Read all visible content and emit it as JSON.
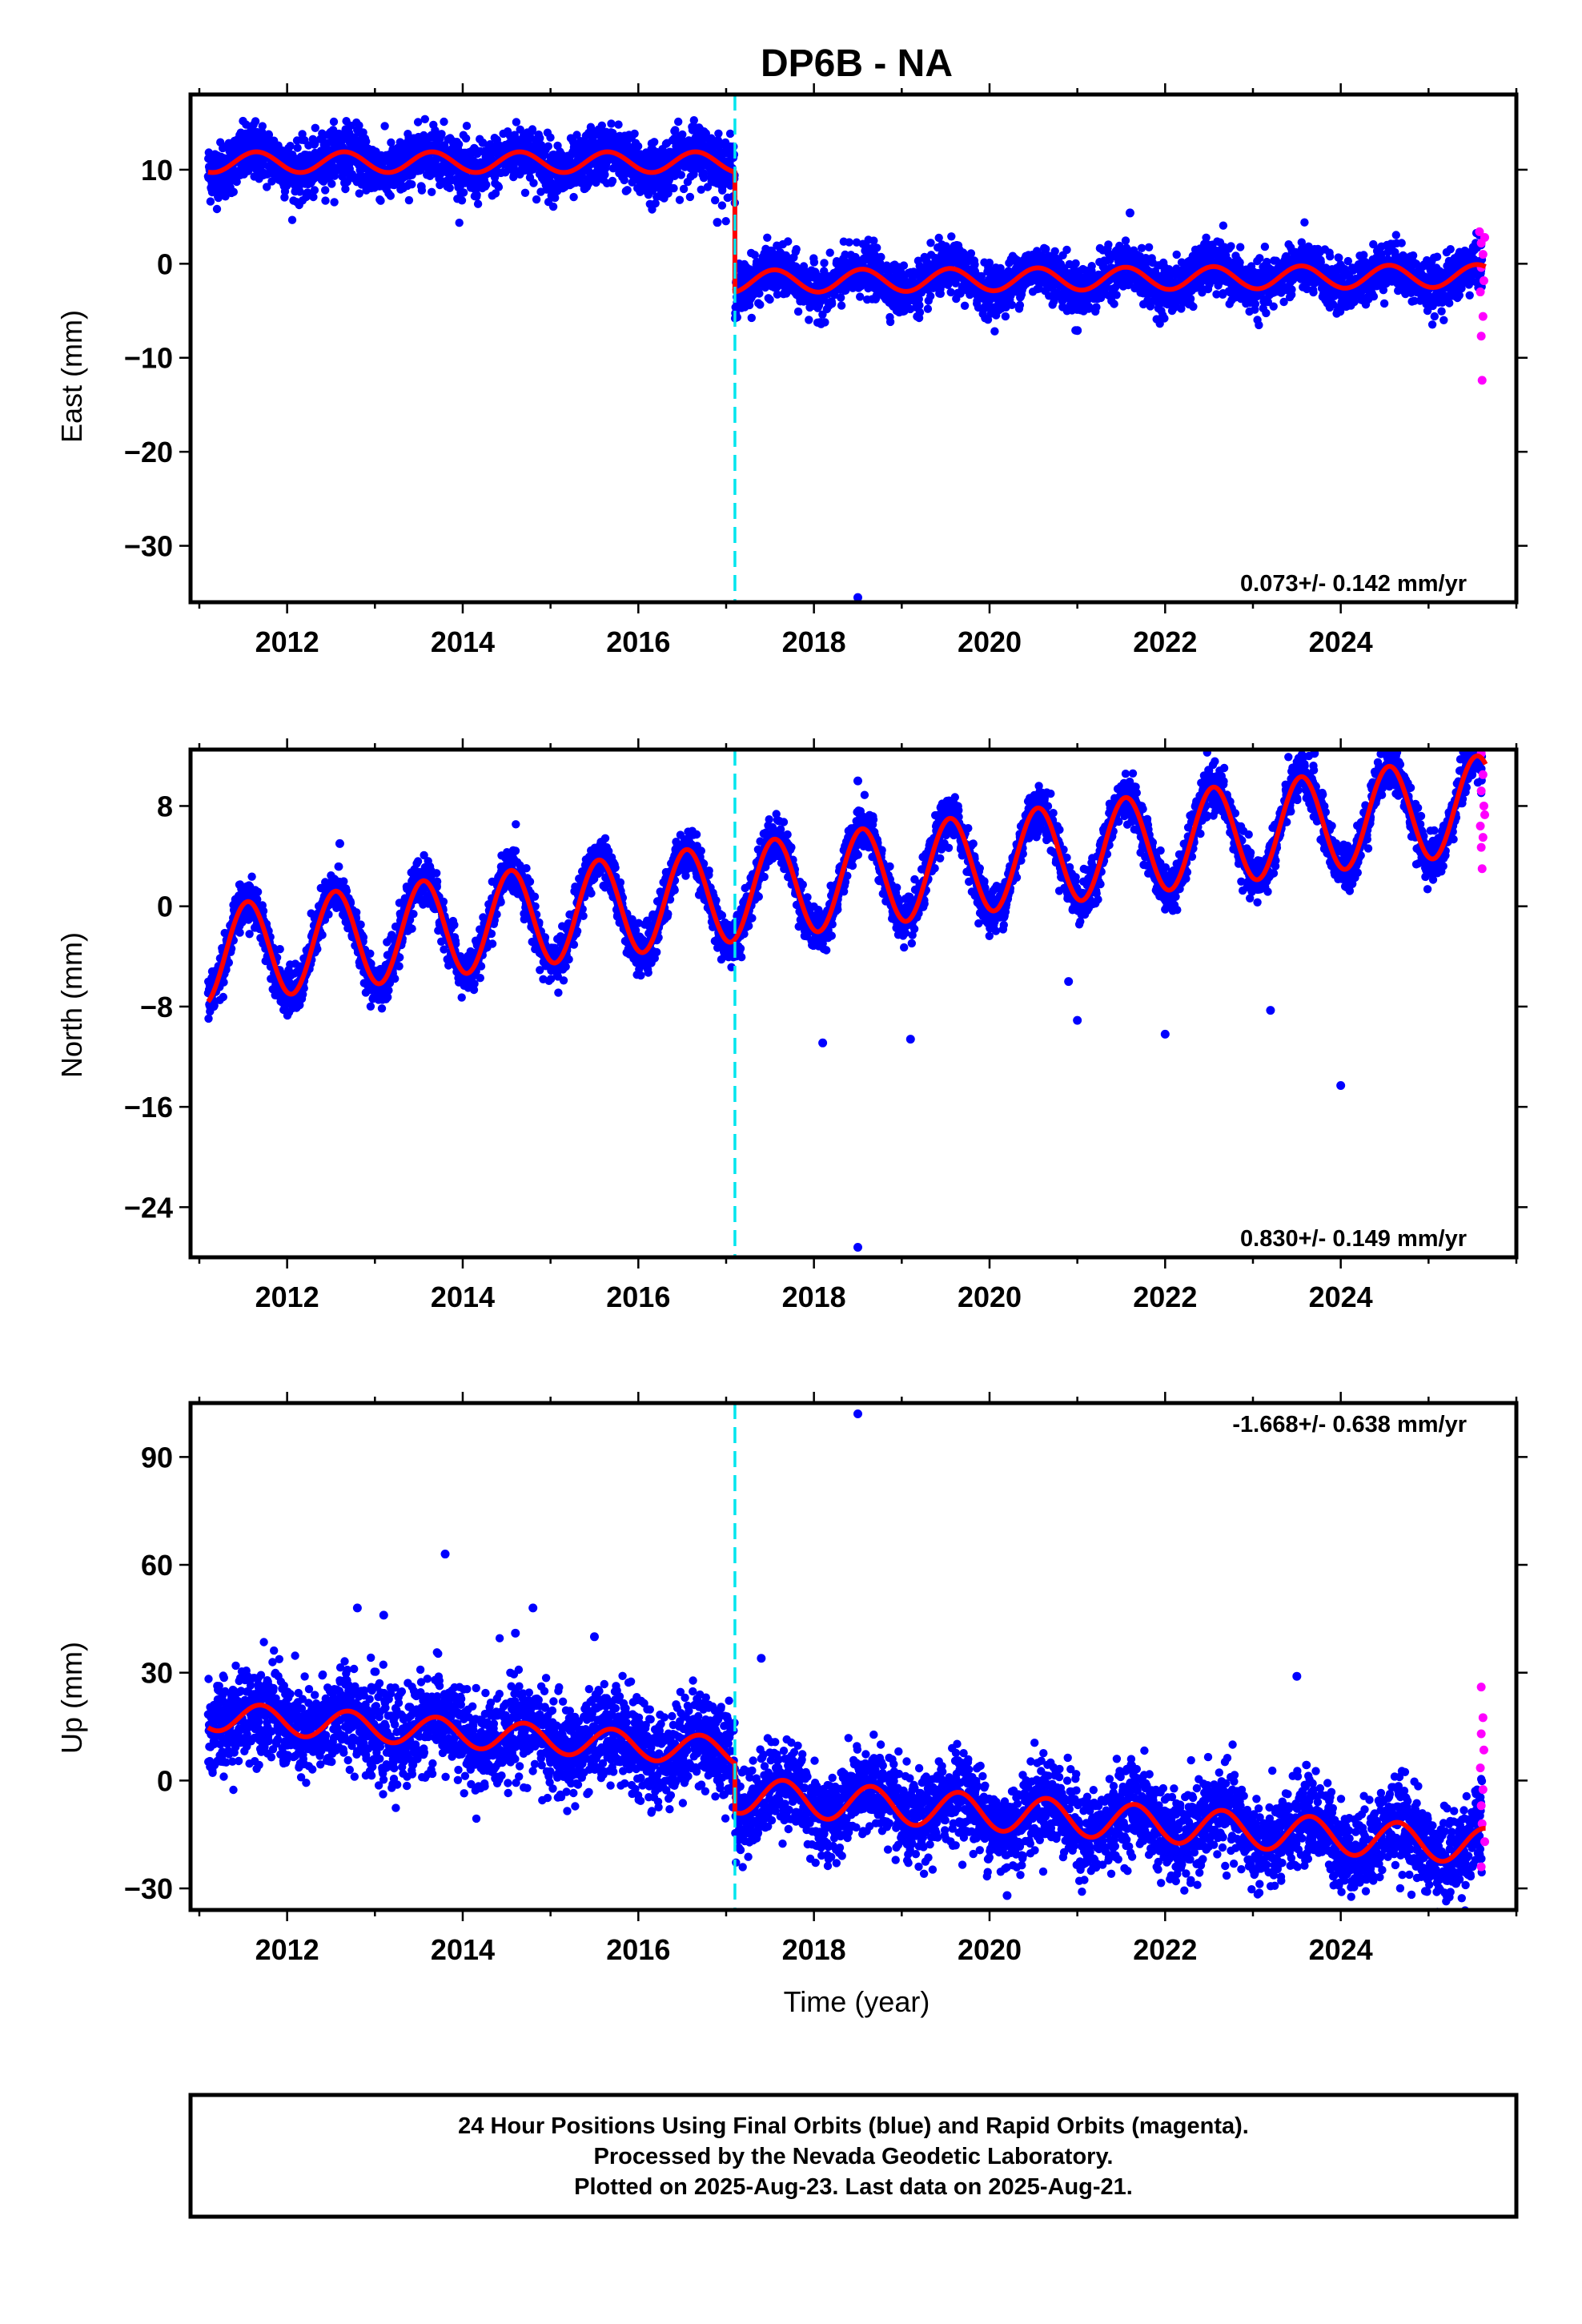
{
  "title": "DP6B - NA",
  "colors": {
    "final_points": "#0000ff",
    "rapid_points": "#ff00ff",
    "model": "#ff0000",
    "offset_line": "#00e5ee",
    "frame": "#000000"
  },
  "chart_data": [
    {
      "type": "scatter",
      "name": "east",
      "ylabel": "East (mm)",
      "xlabel": "",
      "xlim": [
        2010.9,
        2026.0
      ],
      "ylim": [
        -36,
        18
      ],
      "xticks": [
        2012,
        2014,
        2016,
        2018,
        2020,
        2022,
        2024
      ],
      "yticks": [
        10,
        0,
        -10,
        -20,
        -30
      ],
      "rate_label": "0.073+/- 0.142 mm/yr",
      "rate_position": "bottom-right",
      "offset_epoch": 2017.1,
      "model": {
        "start": 2011.1,
        "end": 2025.65,
        "before": {
          "base": 10.8,
          "trend": 0.0,
          "amplitude": 1.1,
          "phase_year": 2011.65,
          "noise": 1.5
        },
        "after": {
          "base": -2.3,
          "trend": 0.07,
          "amplitude": 1.2,
          "phase_year": 2017.55,
          "noise": 1.3
        }
      },
      "outliers": [
        {
          "x": 2018.5,
          "y": -35.5
        },
        {
          "x": 2016.9,
          "y": 4.4
        },
        {
          "x": 2021.0,
          "y": -7.1
        },
        {
          "x": 2021.6,
          "y": 5.4
        }
      ],
      "rapid_points": [
        {
          "x": 2025.58,
          "y": 3.4
        },
        {
          "x": 2025.6,
          "y": 2.2
        },
        {
          "x": 2025.62,
          "y": 1.0
        },
        {
          "x": 2025.6,
          "y": -0.4
        },
        {
          "x": 2025.63,
          "y": -1.8
        },
        {
          "x": 2025.59,
          "y": -3.0
        },
        {
          "x": 2025.62,
          "y": -5.6
        },
        {
          "x": 2025.6,
          "y": -7.7
        },
        {
          "x": 2025.61,
          "y": -12.4
        },
        {
          "x": 2025.64,
          "y": 2.8
        }
      ]
    },
    {
      "type": "scatter",
      "name": "north",
      "ylabel": "North (mm)",
      "xlabel": "",
      "xlim": [
        2010.9,
        2026.0
      ],
      "ylim": [
        -28,
        12.5
      ],
      "xticks": [
        2012,
        2014,
        2016,
        2018,
        2020,
        2022,
        2024
      ],
      "yticks": [
        8,
        0,
        -8,
        -16,
        -24
      ],
      "rate_label": "0.830+/- 0.149 mm/yr",
      "rate_position": "bottom-right",
      "offset_epoch": 2017.1,
      "model": {
        "start": 2011.1,
        "end": 2025.65,
        "before": {
          "base": -3.9,
          "trend": 0.83,
          "amplitude": 3.9,
          "phase_year": 2011.55,
          "noise": 0.9
        },
        "after": {
          "base": -3.9,
          "trend": 0.83,
          "amplitude": 3.9,
          "phase_year": 2011.55,
          "noise": 0.9
        }
      },
      "outliers": [
        {
          "x": 2018.5,
          "y": -27.2
        },
        {
          "x": 2024.0,
          "y": -14.3
        },
        {
          "x": 2019.1,
          "y": -10.6
        },
        {
          "x": 2018.1,
          "y": -10.9
        },
        {
          "x": 2021.0,
          "y": -9.1
        },
        {
          "x": 2022.0,
          "y": -10.2
        },
        {
          "x": 2023.2,
          "y": -8.3
        },
        {
          "x": 2020.9,
          "y": -6.0
        },
        {
          "x": 2023.7,
          "y": 12.2
        },
        {
          "x": 2012.6,
          "y": 5.0
        },
        {
          "x": 2018.5,
          "y": 10.0
        }
      ],
      "rapid_points": [
        {
          "x": 2025.6,
          "y": 12.2
        },
        {
          "x": 2025.62,
          "y": 10.5
        },
        {
          "x": 2025.6,
          "y": 9.2
        },
        {
          "x": 2025.63,
          "y": 8.0
        },
        {
          "x": 2025.59,
          "y": 6.4
        },
        {
          "x": 2025.62,
          "y": 5.5
        },
        {
          "x": 2025.6,
          "y": 4.7
        },
        {
          "x": 2025.61,
          "y": 3.0
        },
        {
          "x": 2025.64,
          "y": 7.3
        }
      ]
    },
    {
      "type": "scatter",
      "name": "up",
      "ylabel": "Up (mm)",
      "xlabel": "Time (year)",
      "xlim": [
        2010.9,
        2026.0
      ],
      "ylim": [
        -36,
        105
      ],
      "xticks": [
        2012,
        2014,
        2016,
        2018,
        2020,
        2022,
        2024
      ],
      "yticks": [
        90,
        60,
        30,
        0,
        -30
      ],
      "rate_label": "-1.668+/- 0.638 mm/yr",
      "rate_position": "top-right",
      "offset_epoch": 2017.1,
      "model": {
        "start": 2011.1,
        "end": 2025.65,
        "before": {
          "base": 18.0,
          "trend": -1.67,
          "amplitude": 4.0,
          "phase_year": 2011.7,
          "noise": 6.5
        },
        "after": {
          "base": 6.0,
          "trend": -1.67,
          "amplitude": 5.0,
          "phase_year": 2017.65,
          "noise": 6.0
        }
      },
      "outliers": [
        {
          "x": 2018.5,
          "y": 102.0
        },
        {
          "x": 2013.8,
          "y": 63.0
        },
        {
          "x": 2014.8,
          "y": 48.0
        },
        {
          "x": 2012.8,
          "y": 48.0
        },
        {
          "x": 2013.1,
          "y": 46.0
        },
        {
          "x": 2015.5,
          "y": 40.0
        },
        {
          "x": 2014.6,
          "y": 41.0
        },
        {
          "x": 2023.5,
          "y": 29.0
        },
        {
          "x": 2017.4,
          "y": 34.0
        },
        {
          "x": 2020.2,
          "y": -32.0
        },
        {
          "x": 2025.35,
          "y": -27.5
        }
      ],
      "rapid_points": [
        {
          "x": 2025.6,
          "y": 26.0
        },
        {
          "x": 2025.62,
          "y": 17.5
        },
        {
          "x": 2025.6,
          "y": 13.0
        },
        {
          "x": 2025.63,
          "y": 8.5
        },
        {
          "x": 2025.59,
          "y": 3.5
        },
        {
          "x": 2025.62,
          "y": -2.5
        },
        {
          "x": 2025.6,
          "y": -7.0
        },
        {
          "x": 2025.61,
          "y": -12.0
        },
        {
          "x": 2025.64,
          "y": -17.0
        },
        {
          "x": 2025.6,
          "y": -24.0
        }
      ]
    }
  ],
  "caption": {
    "line1": "24 Hour Positions Using Final Orbits (blue) and Rapid Orbits (magenta).",
    "line2": "Processed by the Nevada Geodetic Laboratory.",
    "line3": "Plotted on 2025-Aug-23. Last data on 2025-Aug-21."
  }
}
